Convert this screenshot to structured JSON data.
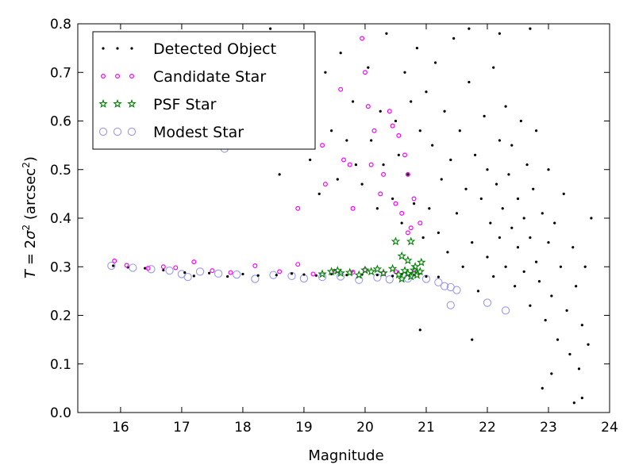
{
  "chart_data": {
    "type": "scatter",
    "xlabel": "Magnitude",
    "ylabel_prefix": "T",
    "ylabel_eq": " = 2",
    "ylabel_sigma": "σ",
    "ylabel_open": " (arcsec",
    "ylabel_close": ")",
    "ylabel_sup": "2",
    "xlim": [
      15.3,
      24.0
    ],
    "ylim": [
      0.0,
      0.8
    ],
    "xticks": [
      16,
      17,
      18,
      19,
      20,
      21,
      22,
      23,
      24
    ],
    "yticks": [
      0.0,
      0.1,
      0.2,
      0.3,
      0.4,
      0.5,
      0.6,
      0.7,
      0.8
    ],
    "grid": false,
    "legend_position": "top-left",
    "colors": {
      "detected": "#000000",
      "candidate": "#ff00ff",
      "psf": "#008000",
      "modest": "#9999ee"
    },
    "series": [
      {
        "key": "detected",
        "name": "Detected Object",
        "marker": "dot",
        "points": [
          [
            15.88,
            0.302
          ],
          [
            16.12,
            0.299
          ],
          [
            16.4,
            0.297
          ],
          [
            16.7,
            0.293
          ],
          [
            17.05,
            0.288
          ],
          [
            17.2,
            0.281
          ],
          [
            17.45,
            0.287
          ],
          [
            17.75,
            0.28
          ],
          [
            18.0,
            0.285
          ],
          [
            18.25,
            0.282
          ],
          [
            18.55,
            0.283
          ],
          [
            18.8,
            0.286
          ],
          [
            19.0,
            0.284
          ],
          [
            19.2,
            0.282
          ],
          [
            19.45,
            0.285
          ],
          [
            19.7,
            0.283
          ],
          [
            19.95,
            0.284
          ],
          [
            20.2,
            0.283
          ],
          [
            20.45,
            0.281
          ],
          [
            20.6,
            0.285
          ],
          [
            20.8,
            0.283
          ],
          [
            21.0,
            0.28
          ],
          [
            21.2,
            0.279
          ],
          [
            17.7,
            0.545
          ],
          [
            18.45,
            0.79
          ],
          [
            18.6,
            0.49
          ],
          [
            18.75,
            0.57
          ],
          [
            18.9,
            0.55
          ],
          [
            19.05,
            0.62
          ],
          [
            19.1,
            0.52
          ],
          [
            19.25,
            0.45
          ],
          [
            19.35,
            0.7
          ],
          [
            19.45,
            0.58
          ],
          [
            19.55,
            0.48
          ],
          [
            19.6,
            0.74
          ],
          [
            19.7,
            0.56
          ],
          [
            19.8,
            0.64
          ],
          [
            19.85,
            0.51
          ],
          [
            19.95,
            0.47
          ],
          [
            20.05,
            0.71
          ],
          [
            20.1,
            0.56
          ],
          [
            20.2,
            0.42
          ],
          [
            20.25,
            0.62
          ],
          [
            20.3,
            0.51
          ],
          [
            20.35,
            0.78
          ],
          [
            20.45,
            0.44
          ],
          [
            20.5,
            0.6
          ],
          [
            20.55,
            0.53
          ],
          [
            20.6,
            0.39
          ],
          [
            20.65,
            0.7
          ],
          [
            20.7,
            0.49
          ],
          [
            20.75,
            0.64
          ],
          [
            20.8,
            0.43
          ],
          [
            20.85,
            0.75
          ],
          [
            20.9,
            0.58
          ],
          [
            20.95,
            0.36
          ],
          [
            21.0,
            0.66
          ],
          [
            21.05,
            0.42
          ],
          [
            21.1,
            0.55
          ],
          [
            21.15,
            0.72
          ],
          [
            21.2,
            0.37
          ],
          [
            21.25,
            0.48
          ],
          [
            21.3,
            0.62
          ],
          [
            21.35,
            0.33
          ],
          [
            21.4,
            0.52
          ],
          [
            21.45,
            0.77
          ],
          [
            21.5,
            0.41
          ],
          [
            21.55,
            0.58
          ],
          [
            21.6,
            0.3
          ],
          [
            21.65,
            0.46
          ],
          [
            21.7,
            0.68
          ],
          [
            21.75,
            0.35
          ],
          [
            21.8,
            0.53
          ],
          [
            21.85,
            0.25
          ],
          [
            21.9,
            0.44
          ],
          [
            21.95,
            0.61
          ],
          [
            22.0,
            0.32
          ],
          [
            22.0,
            0.5
          ],
          [
            22.05,
            0.39
          ],
          [
            22.1,
            0.71
          ],
          [
            22.1,
            0.28
          ],
          [
            22.15,
            0.47
          ],
          [
            22.2,
            0.56
          ],
          [
            22.2,
            0.36
          ],
          [
            22.25,
            0.42
          ],
          [
            22.3,
            0.63
          ],
          [
            22.3,
            0.3
          ],
          [
            22.35,
            0.49
          ],
          [
            22.4,
            0.38
          ],
          [
            22.4,
            0.55
          ],
          [
            22.45,
            0.26
          ],
          [
            22.5,
            0.44
          ],
          [
            22.5,
            0.34
          ],
          [
            22.55,
            0.6
          ],
          [
            22.6,
            0.4
          ],
          [
            22.6,
            0.29
          ],
          [
            22.65,
            0.51
          ],
          [
            22.7,
            0.36
          ],
          [
            22.7,
            0.22
          ],
          [
            22.75,
            0.46
          ],
          [
            22.8,
            0.31
          ],
          [
            22.8,
            0.58
          ],
          [
            22.85,
            0.27
          ],
          [
            22.9,
            0.41
          ],
          [
            22.95,
            0.19
          ],
          [
            23.0,
            0.35
          ],
          [
            23.0,
            0.5
          ],
          [
            23.05,
            0.24
          ],
          [
            23.1,
            0.39
          ],
          [
            23.15,
            0.15
          ],
          [
            23.2,
            0.3
          ],
          [
            23.25,
            0.45
          ],
          [
            23.3,
            0.21
          ],
          [
            23.35,
            0.12
          ],
          [
            23.4,
            0.34
          ],
          [
            23.45,
            0.26
          ],
          [
            23.5,
            0.09
          ],
          [
            23.55,
            0.18
          ],
          [
            23.6,
            0.3
          ],
          [
            23.65,
            0.14
          ],
          [
            23.7,
            0.4
          ],
          [
            23.42,
            0.02
          ],
          [
            23.55,
            0.03
          ],
          [
            23.05,
            0.08
          ],
          [
            22.9,
            0.05
          ],
          [
            21.75,
            0.15
          ],
          [
            20.9,
            0.17
          ],
          [
            22.7,
            0.79
          ],
          [
            22.2,
            0.78
          ],
          [
            21.7,
            0.79
          ]
        ]
      },
      {
        "key": "candidate",
        "name": "Candidate Star",
        "marker": "circle",
        "points": [
          [
            15.9,
            0.312
          ],
          [
            16.1,
            0.303
          ],
          [
            16.45,
            0.297
          ],
          [
            16.7,
            0.3
          ],
          [
            16.9,
            0.298
          ],
          [
            17.2,
            0.31
          ],
          [
            17.5,
            0.292
          ],
          [
            17.8,
            0.288
          ],
          [
            18.2,
            0.302
          ],
          [
            18.6,
            0.29
          ],
          [
            18.9,
            0.305
          ],
          [
            19.15,
            0.285
          ],
          [
            19.5,
            0.291
          ],
          [
            19.8,
            0.289
          ],
          [
            20.0,
            0.294
          ],
          [
            20.3,
            0.286
          ],
          [
            20.5,
            0.29
          ],
          [
            20.8,
            0.288
          ],
          [
            18.9,
            0.42
          ],
          [
            19.3,
            0.55
          ],
          [
            19.35,
            0.47
          ],
          [
            19.65,
            0.52
          ],
          [
            19.75,
            0.51
          ],
          [
            19.8,
            0.42
          ],
          [
            19.95,
            0.77
          ],
          [
            20.0,
            0.7
          ],
          [
            20.05,
            0.63
          ],
          [
            20.1,
            0.51
          ],
          [
            20.15,
            0.58
          ],
          [
            20.25,
            0.45
          ],
          [
            20.3,
            0.49
          ],
          [
            20.4,
            0.62
          ],
          [
            20.45,
            0.59
          ],
          [
            20.5,
            0.43
          ],
          [
            20.55,
            0.57
          ],
          [
            20.6,
            0.41
          ],
          [
            20.65,
            0.53
          ],
          [
            20.7,
            0.49
          ],
          [
            20.75,
            0.38
          ],
          [
            20.8,
            0.44
          ],
          [
            20.9,
            0.39
          ],
          [
            19.6,
            0.665
          ],
          [
            20.7,
            0.37
          ]
        ]
      },
      {
        "key": "psf",
        "name": "PSF Star",
        "marker": "star",
        "points": [
          [
            19.3,
            0.285
          ],
          [
            19.45,
            0.29
          ],
          [
            19.55,
            0.292
          ],
          [
            19.6,
            0.287
          ],
          [
            19.75,
            0.288
          ],
          [
            19.9,
            0.283
          ],
          [
            20.0,
            0.293
          ],
          [
            20.1,
            0.29
          ],
          [
            20.2,
            0.295
          ],
          [
            20.3,
            0.287
          ],
          [
            20.45,
            0.296
          ],
          [
            20.55,
            0.284
          ],
          [
            20.6,
            0.275
          ],
          [
            20.65,
            0.292
          ],
          [
            20.7,
            0.286
          ],
          [
            20.75,
            0.28
          ],
          [
            20.8,
            0.293
          ],
          [
            20.85,
            0.283
          ],
          [
            20.9,
            0.29
          ],
          [
            20.5,
            0.352
          ],
          [
            20.75,
            0.352
          ],
          [
            20.7,
            0.313
          ],
          [
            20.92,
            0.309
          ],
          [
            20.6,
            0.322
          ],
          [
            20.82,
            0.3
          ]
        ]
      },
      {
        "key": "modest",
        "name": "Modest Star",
        "marker": "ring",
        "points": [
          [
            15.85,
            0.302
          ],
          [
            16.2,
            0.298
          ],
          [
            16.5,
            0.295
          ],
          [
            16.8,
            0.292
          ],
          [
            17.0,
            0.285
          ],
          [
            17.1,
            0.279
          ],
          [
            17.3,
            0.29
          ],
          [
            17.6,
            0.286
          ],
          [
            17.7,
            0.543
          ],
          [
            17.9,
            0.284
          ],
          [
            18.2,
            0.275
          ],
          [
            18.5,
            0.283
          ],
          [
            18.8,
            0.281
          ],
          [
            19.0,
            0.276
          ],
          [
            19.3,
            0.279
          ],
          [
            19.6,
            0.28
          ],
          [
            19.9,
            0.273
          ],
          [
            20.2,
            0.278
          ],
          [
            20.4,
            0.274
          ],
          [
            20.7,
            0.276
          ],
          [
            21.0,
            0.275
          ],
          [
            21.2,
            0.268
          ],
          [
            21.4,
            0.258
          ],
          [
            21.5,
            0.252
          ],
          [
            21.3,
            0.26
          ],
          [
            21.4,
            0.221
          ],
          [
            22.0,
            0.226
          ],
          [
            22.3,
            0.21
          ]
        ]
      }
    ]
  }
}
